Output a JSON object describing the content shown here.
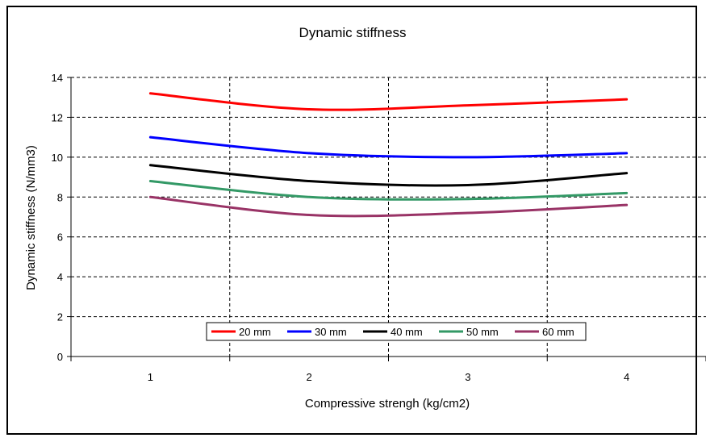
{
  "chart_data": {
    "type": "line",
    "title": "Dynamic stiffness",
    "xlabel": "Compressive strengh (kg/cm2)",
    "ylabel": "Dynamic stiffness (N/mm3)",
    "categories": [
      "1",
      "2",
      "3",
      "4"
    ],
    "x": [
      1,
      2,
      3,
      4
    ],
    "ylim": [
      0,
      14
    ],
    "yticks": [
      "0",
      "2",
      "4",
      "6",
      "8",
      "10",
      "12",
      "14"
    ],
    "grid": true,
    "legend_placement": "bottom-center",
    "series": [
      {
        "name": "20 mm",
        "color": "#ff0000",
        "values": [
          13.2,
          12.4,
          12.6,
          12.9
        ]
      },
      {
        "name": "30 mm",
        "color": "#0000ff",
        "values": [
          11.0,
          10.2,
          10.0,
          10.2
        ]
      },
      {
        "name": "40 mm",
        "color": "#000000",
        "values": [
          9.6,
          8.8,
          8.6,
          9.2
        ]
      },
      {
        "name": "50 mm",
        "color": "#339966",
        "values": [
          8.8,
          8.0,
          7.9,
          8.2
        ]
      },
      {
        "name": "60 mm",
        "color": "#993366",
        "values": [
          8.0,
          7.1,
          7.2,
          7.6
        ]
      }
    ]
  }
}
